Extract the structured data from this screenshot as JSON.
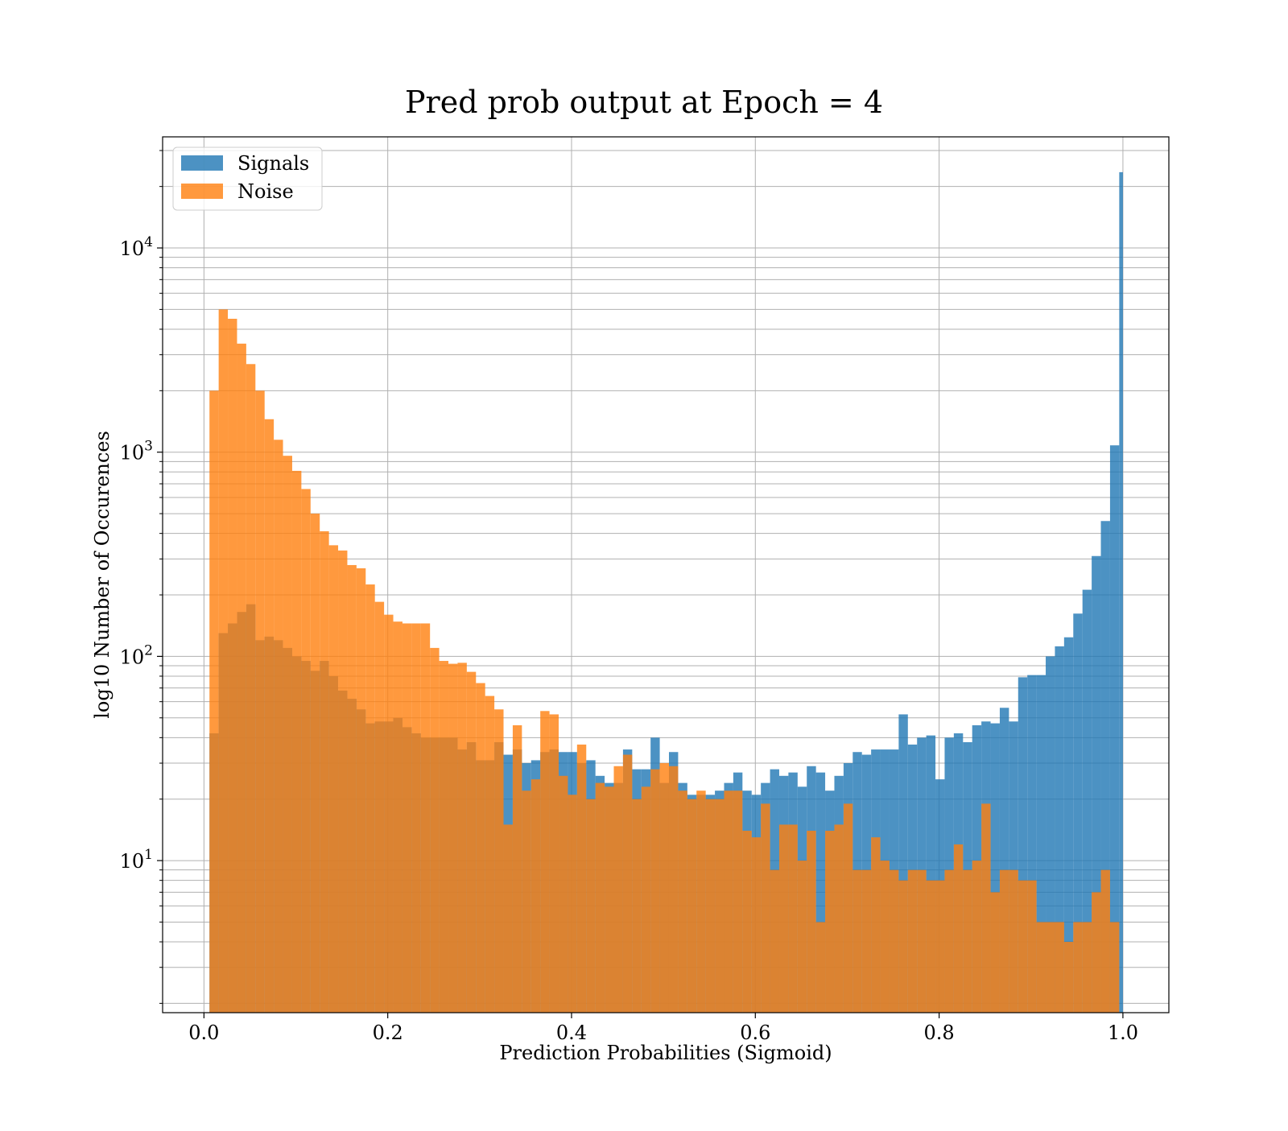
{
  "colors": {
    "signals": "#1f77b4",
    "noise": "#ff7f0e",
    "grid": "#b0b0b0"
  },
  "chart_data": {
    "type": "histogram",
    "title": "Pred prob output at Epoch = 4",
    "xlabel": "Prediction Probabilities (Sigmoid)",
    "ylabel": "log10 Number of Occurences",
    "xlim": [
      -0.045,
      1.05
    ],
    "ylim": [
      1.8,
      35000
    ],
    "yscale": "log",
    "grid": true,
    "legend_position": "upper left",
    "bar_opacity": 0.8,
    "x_ticks": [
      0.0,
      0.2,
      0.4,
      0.6,
      0.8,
      1.0
    ],
    "x_tick_labels": [
      "0.0",
      "0.2",
      "0.4",
      "0.6",
      "0.8",
      "1.0"
    ],
    "y_ticks": [
      {
        "value": 10,
        "base": "10",
        "exp": "1"
      },
      {
        "value": 100,
        "base": "10",
        "exp": "2"
      },
      {
        "value": 1000,
        "base": "10",
        "exp": "3"
      },
      {
        "value": 10000,
        "base": "10",
        "exp": "4"
      }
    ],
    "series": [
      {
        "name": "Signals",
        "bins": [
          [
            0.006,
            0.016,
            42
          ],
          [
            0.016,
            0.026,
            130
          ],
          [
            0.026,
            0.036,
            145
          ],
          [
            0.036,
            0.046,
            165
          ],
          [
            0.046,
            0.056,
            180
          ],
          [
            0.056,
            0.066,
            120
          ],
          [
            0.066,
            0.076,
            125
          ],
          [
            0.076,
            0.086,
            120
          ],
          [
            0.086,
            0.096,
            110
          ],
          [
            0.096,
            0.106,
            100
          ],
          [
            0.106,
            0.116,
            95
          ],
          [
            0.116,
            0.126,
            85
          ],
          [
            0.126,
            0.136,
            95
          ],
          [
            0.136,
            0.146,
            80
          ],
          [
            0.146,
            0.156,
            68
          ],
          [
            0.156,
            0.166,
            62
          ],
          [
            0.166,
            0.176,
            55
          ],
          [
            0.176,
            0.186,
            47
          ],
          [
            0.186,
            0.196,
            48
          ],
          [
            0.196,
            0.206,
            48
          ],
          [
            0.206,
            0.216,
            50
          ],
          [
            0.216,
            0.226,
            45
          ],
          [
            0.226,
            0.236,
            42
          ],
          [
            0.236,
            0.246,
            40
          ],
          [
            0.246,
            0.256,
            40
          ],
          [
            0.256,
            0.266,
            40
          ],
          [
            0.266,
            0.276,
            40
          ],
          [
            0.276,
            0.286,
            35
          ],
          [
            0.286,
            0.296,
            38
          ],
          [
            0.296,
            0.306,
            31
          ],
          [
            0.306,
            0.316,
            31
          ],
          [
            0.316,
            0.326,
            38
          ],
          [
            0.326,
            0.336,
            33
          ],
          [
            0.336,
            0.346,
            35
          ],
          [
            0.346,
            0.356,
            30
          ],
          [
            0.356,
            0.366,
            31
          ],
          [
            0.366,
            0.376,
            34
          ],
          [
            0.376,
            0.386,
            35
          ],
          [
            0.386,
            0.396,
            34
          ],
          [
            0.396,
            0.406,
            34
          ],
          [
            0.406,
            0.416,
            30
          ],
          [
            0.416,
            0.426,
            31
          ],
          [
            0.426,
            0.436,
            26
          ],
          [
            0.436,
            0.446,
            24
          ],
          [
            0.446,
            0.456,
            24
          ],
          [
            0.456,
            0.466,
            35
          ],
          [
            0.466,
            0.476,
            28
          ],
          [
            0.476,
            0.486,
            28
          ],
          [
            0.486,
            0.496,
            40
          ],
          [
            0.496,
            0.506,
            24
          ],
          [
            0.506,
            0.516,
            34
          ],
          [
            0.516,
            0.526,
            24
          ],
          [
            0.526,
            0.536,
            21
          ],
          [
            0.536,
            0.546,
            21
          ],
          [
            0.546,
            0.556,
            21
          ],
          [
            0.556,
            0.566,
            22
          ],
          [
            0.566,
            0.576,
            24
          ],
          [
            0.576,
            0.586,
            27
          ],
          [
            0.586,
            0.596,
            22
          ],
          [
            0.596,
            0.606,
            21
          ],
          [
            0.606,
            0.616,
            24
          ],
          [
            0.616,
            0.626,
            28
          ],
          [
            0.626,
            0.636,
            26
          ],
          [
            0.636,
            0.646,
            27
          ],
          [
            0.646,
            0.656,
            23
          ],
          [
            0.656,
            0.666,
            29
          ],
          [
            0.666,
            0.676,
            27
          ],
          [
            0.676,
            0.686,
            22
          ],
          [
            0.686,
            0.696,
            26
          ],
          [
            0.696,
            0.706,
            30
          ],
          [
            0.706,
            0.716,
            34
          ],
          [
            0.716,
            0.726,
            33
          ],
          [
            0.726,
            0.736,
            35
          ],
          [
            0.736,
            0.746,
            35
          ],
          [
            0.746,
            0.756,
            35
          ],
          [
            0.756,
            0.766,
            52
          ],
          [
            0.766,
            0.776,
            37
          ],
          [
            0.776,
            0.786,
            40
          ],
          [
            0.786,
            0.796,
            41
          ],
          [
            0.796,
            0.806,
            25
          ],
          [
            0.806,
            0.816,
            40
          ],
          [
            0.816,
            0.826,
            42
          ],
          [
            0.826,
            0.836,
            38
          ],
          [
            0.836,
            0.846,
            46
          ],
          [
            0.846,
            0.856,
            48
          ],
          [
            0.856,
            0.866,
            47
          ],
          [
            0.866,
            0.876,
            56
          ],
          [
            0.876,
            0.886,
            48
          ],
          [
            0.886,
            0.896,
            79
          ],
          [
            0.896,
            0.906,
            81
          ],
          [
            0.906,
            0.916,
            81
          ],
          [
            0.916,
            0.926,
            100
          ],
          [
            0.926,
            0.936,
            112
          ],
          [
            0.936,
            0.946,
            124
          ],
          [
            0.946,
            0.956,
            162
          ],
          [
            0.956,
            0.966,
            212
          ],
          [
            0.966,
            0.976,
            310
          ],
          [
            0.976,
            0.986,
            460
          ],
          [
            0.986,
            0.996,
            1080
          ],
          [
            0.996,
            1.0,
            23500
          ]
        ]
      },
      {
        "name": "Noise",
        "bins": [
          [
            0.006,
            0.016,
            2000
          ],
          [
            0.016,
            0.026,
            5000
          ],
          [
            0.026,
            0.036,
            4500
          ],
          [
            0.036,
            0.046,
            3400
          ],
          [
            0.046,
            0.056,
            2700
          ],
          [
            0.056,
            0.066,
            2000
          ],
          [
            0.066,
            0.076,
            1450
          ],
          [
            0.076,
            0.086,
            1150
          ],
          [
            0.086,
            0.096,
            960
          ],
          [
            0.096,
            0.106,
            810
          ],
          [
            0.106,
            0.116,
            660
          ],
          [
            0.116,
            0.126,
            500
          ],
          [
            0.126,
            0.136,
            410
          ],
          [
            0.136,
            0.146,
            350
          ],
          [
            0.146,
            0.156,
            330
          ],
          [
            0.156,
            0.166,
            280
          ],
          [
            0.166,
            0.176,
            270
          ],
          [
            0.176,
            0.186,
            225
          ],
          [
            0.186,
            0.196,
            185
          ],
          [
            0.196,
            0.206,
            160
          ],
          [
            0.206,
            0.216,
            148
          ],
          [
            0.216,
            0.226,
            145
          ],
          [
            0.226,
            0.236,
            145
          ],
          [
            0.236,
            0.246,
            145
          ],
          [
            0.246,
            0.256,
            110
          ],
          [
            0.256,
            0.266,
            95
          ],
          [
            0.266,
            0.276,
            92
          ],
          [
            0.276,
            0.286,
            93
          ],
          [
            0.286,
            0.296,
            84
          ],
          [
            0.296,
            0.306,
            74
          ],
          [
            0.306,
            0.316,
            64
          ],
          [
            0.316,
            0.326,
            55
          ],
          [
            0.326,
            0.336,
            15
          ],
          [
            0.336,
            0.346,
            46
          ],
          [
            0.346,
            0.356,
            22
          ],
          [
            0.356,
            0.366,
            25
          ],
          [
            0.366,
            0.376,
            54
          ],
          [
            0.376,
            0.386,
            52
          ],
          [
            0.386,
            0.396,
            26
          ],
          [
            0.396,
            0.406,
            21
          ],
          [
            0.406,
            0.416,
            37
          ],
          [
            0.416,
            0.426,
            20
          ],
          [
            0.426,
            0.436,
            24
          ],
          [
            0.436,
            0.446,
            23
          ],
          [
            0.446,
            0.456,
            29
          ],
          [
            0.456,
            0.466,
            33
          ],
          [
            0.466,
            0.476,
            20
          ],
          [
            0.476,
            0.486,
            23
          ],
          [
            0.486,
            0.496,
            28
          ],
          [
            0.496,
            0.506,
            30
          ],
          [
            0.506,
            0.516,
            29
          ],
          [
            0.516,
            0.526,
            22
          ],
          [
            0.526,
            0.536,
            20
          ],
          [
            0.536,
            0.546,
            22
          ],
          [
            0.546,
            0.556,
            20
          ],
          [
            0.556,
            0.566,
            20
          ],
          [
            0.566,
            0.576,
            22
          ],
          [
            0.576,
            0.586,
            22
          ],
          [
            0.586,
            0.596,
            14
          ],
          [
            0.596,
            0.606,
            13
          ],
          [
            0.606,
            0.616,
            19
          ],
          [
            0.616,
            0.626,
            9
          ],
          [
            0.626,
            0.636,
            15
          ],
          [
            0.636,
            0.646,
            15
          ],
          [
            0.646,
            0.656,
            10
          ],
          [
            0.656,
            0.666,
            14
          ],
          [
            0.666,
            0.676,
            5
          ],
          [
            0.676,
            0.686,
            14
          ],
          [
            0.686,
            0.696,
            15
          ],
          [
            0.696,
            0.706,
            19
          ],
          [
            0.706,
            0.716,
            9
          ],
          [
            0.716,
            0.726,
            9
          ],
          [
            0.726,
            0.736,
            13
          ],
          [
            0.736,
            0.746,
            10
          ],
          [
            0.746,
            0.756,
            9
          ],
          [
            0.756,
            0.766,
            8
          ],
          [
            0.766,
            0.776,
            9
          ],
          [
            0.776,
            0.786,
            9
          ],
          [
            0.786,
            0.796,
            8
          ],
          [
            0.796,
            0.806,
            8
          ],
          [
            0.806,
            0.816,
            9
          ],
          [
            0.816,
            0.826,
            12
          ],
          [
            0.826,
            0.836,
            9
          ],
          [
            0.836,
            0.846,
            10
          ],
          [
            0.846,
            0.856,
            19
          ],
          [
            0.856,
            0.866,
            7
          ],
          [
            0.866,
            0.876,
            9
          ],
          [
            0.876,
            0.886,
            9
          ],
          [
            0.886,
            0.896,
            8
          ],
          [
            0.896,
            0.906,
            8
          ],
          [
            0.906,
            0.916,
            5
          ],
          [
            0.916,
            0.926,
            5
          ],
          [
            0.926,
            0.936,
            5
          ],
          [
            0.936,
            0.946,
            4
          ],
          [
            0.946,
            0.956,
            5
          ],
          [
            0.956,
            0.966,
            5
          ],
          [
            0.966,
            0.976,
            7
          ],
          [
            0.976,
            0.986,
            9
          ],
          [
            0.986,
            0.996,
            5
          ],
          [
            0.996,
            1.0,
            0
          ]
        ]
      }
    ]
  }
}
